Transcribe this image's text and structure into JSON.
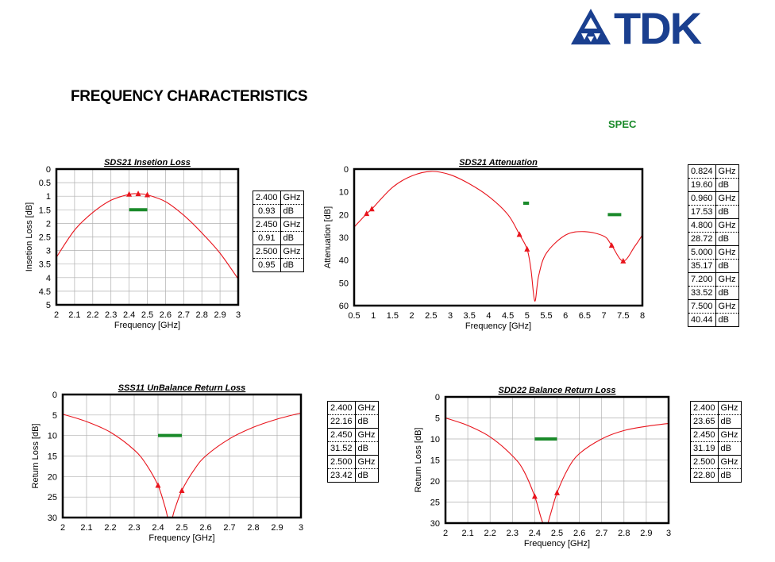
{
  "page_title": "FREQUENCY CHARACTERISTICS",
  "spec_label": "SPEC",
  "logo": {
    "text": "TDK",
    "icon": "tdk-triangle-logo-icon",
    "color": "#1a3f8f"
  },
  "colors": {
    "curve": "#e8141c",
    "spec": "#1a8a2a",
    "grid": "#b0b0b0"
  },
  "chart_data": [
    {
      "id": "sds21-insertion-loss",
      "type": "line",
      "title": "SDS21 Insetion Loss",
      "xlabel": "Frequency [GHz]",
      "ylabel": "Insetion Loss [dB]",
      "xlim": [
        2,
        3
      ],
      "ylim": [
        0,
        5
      ],
      "y_inverted": true,
      "xticks": [
        "2",
        "2.1",
        "2.2",
        "2.3",
        "2.4",
        "2.5",
        "2.6",
        "2.7",
        "2.8",
        "2.9",
        "3"
      ],
      "yticks": [
        "0",
        "0.5",
        "1",
        "1.5",
        "2",
        "2.5",
        "3",
        "3.5",
        "4",
        "4.5",
        "5"
      ],
      "grid": true,
      "series": [
        {
          "x": [
            2.0,
            2.1,
            2.2,
            2.3,
            2.4,
            2.45,
            2.5,
            2.6,
            2.7,
            2.8,
            2.9,
            3.0
          ],
          "values": [
            3.25,
            2.25,
            1.6,
            1.15,
            0.93,
            0.91,
            0.95,
            1.2,
            1.7,
            2.35,
            3.1,
            4.05
          ]
        }
      ],
      "markers": [
        {
          "x": 2.4,
          "y": 0.93
        },
        {
          "x": 2.45,
          "y": 0.91
        },
        {
          "x": 2.5,
          "y": 0.95
        }
      ],
      "spec_lines": [
        {
          "x1": 2.4,
          "x2": 2.5,
          "y": 1.5
        }
      ],
      "table": [
        {
          "freq": "2.400",
          "fu": "GHz",
          "val": "0.93",
          "vu": "dB"
        },
        {
          "freq": "2.450",
          "fu": "GHz",
          "val": "0.91",
          "vu": "dB"
        },
        {
          "freq": "2.500",
          "fu": "GHz",
          "val": "0.95",
          "vu": "dB"
        }
      ]
    },
    {
      "id": "sds21-attenuation",
      "type": "line",
      "title": "SDS21 Attenuation",
      "xlabel": "Frequency [GHz]",
      "ylabel": "Attenuation [dB]",
      "xlim": [
        0.5,
        8
      ],
      "ylim": [
        0,
        60
      ],
      "y_inverted": true,
      "xticks": [
        "0.5",
        "1",
        "1.5",
        "2",
        "2.5",
        "3",
        "3.5",
        "4",
        "4.5",
        "5",
        "5.5",
        "6",
        "6.5",
        "7",
        "7.5",
        "8"
      ],
      "yticks": [
        "0",
        "10",
        "20",
        "30",
        "40",
        "50",
        "60"
      ],
      "grid": false,
      "series": [
        {
          "x": [
            0.5,
            0.824,
            0.96,
            1.5,
            2.0,
            2.5,
            3.0,
            3.5,
            4.0,
            4.5,
            4.8,
            5.0,
            5.1,
            5.2,
            5.3,
            5.5,
            6.0,
            6.5,
            7.0,
            7.2,
            7.5,
            7.8,
            8.0
          ],
          "values": [
            25.5,
            19.6,
            17.53,
            8,
            3,
            1,
            2.5,
            6.5,
            12,
            20,
            28.72,
            35.17,
            44,
            58,
            47,
            37,
            29,
            27.5,
            29.5,
            33.52,
            40.44,
            34,
            29
          ]
        }
      ],
      "markers": [
        {
          "x": 0.824,
          "y": 19.6
        },
        {
          "x": 0.96,
          "y": 17.53
        },
        {
          "x": 4.8,
          "y": 28.72
        },
        {
          "x": 5.0,
          "y": 35.17
        },
        {
          "x": 7.2,
          "y": 33.52
        },
        {
          "x": 7.5,
          "y": 40.44
        }
      ],
      "spec_lines": [
        {
          "x1": 4.9,
          "x2": 5.05,
          "y": 15
        },
        {
          "x1": 7.1,
          "x2": 7.45,
          "y": 20
        }
      ],
      "table": [
        {
          "freq": "0.824",
          "fu": "GHz",
          "val": "19.60",
          "vu": "dB"
        },
        {
          "freq": "0.960",
          "fu": "GHz",
          "val": "17.53",
          "vu": "dB"
        },
        {
          "freq": "4.800",
          "fu": "GHz",
          "val": "28.72",
          "vu": "dB"
        },
        {
          "freq": "5.000",
          "fu": "GHz",
          "val": "35.17",
          "vu": "dB"
        },
        {
          "freq": "7.200",
          "fu": "GHz",
          "val": "33.52",
          "vu": "dB"
        },
        {
          "freq": "7.500",
          "fu": "GHz",
          "val": "40.44",
          "vu": "dB"
        }
      ]
    },
    {
      "id": "sss11-return-loss",
      "type": "line",
      "title": "SSS11 UnBalance Return Loss",
      "xlabel": "Frequency [GHz]",
      "ylabel": "Return Loss [dB]",
      "xlim": [
        2,
        3
      ],
      "ylim": [
        0,
        30
      ],
      "y_inverted": true,
      "xticks": [
        "2",
        "2.1",
        "2.2",
        "2.3",
        "2.4",
        "2.5",
        "2.6",
        "2.7",
        "2.8",
        "2.9",
        "3"
      ],
      "yticks": [
        "0",
        "5",
        "10",
        "15",
        "20",
        "25",
        "30"
      ],
      "grid": true,
      "series": [
        {
          "x": [
            2.0,
            2.1,
            2.2,
            2.3,
            2.35,
            2.4,
            2.43,
            2.45,
            2.47,
            2.5,
            2.55,
            2.6,
            2.7,
            2.8,
            2.9,
            3.0
          ],
          "values": [
            4.8,
            6.6,
            9.2,
            13.5,
            17,
            22.16,
            27.5,
            31.52,
            28,
            23.42,
            18.5,
            15,
            10.8,
            8,
            6,
            4.5
          ]
        }
      ],
      "markers": [
        {
          "x": 2.4,
          "y": 22.16
        },
        {
          "x": 2.5,
          "y": 23.42
        }
      ],
      "spec_lines": [
        {
          "x1": 2.4,
          "x2": 2.5,
          "y": 10
        }
      ],
      "table": [
        {
          "freq": "2.400",
          "fu": "GHz",
          "val": "22.16",
          "vu": "dB"
        },
        {
          "freq": "2.450",
          "fu": "GHz",
          "val": "31.52",
          "vu": "dB"
        },
        {
          "freq": "2.500",
          "fu": "GHz",
          "val": "23.42",
          "vu": "dB"
        }
      ]
    },
    {
      "id": "sdd22-return-loss",
      "type": "line",
      "title": "SDD22 Balance Return Loss",
      "xlabel": "Frequency [GHz]",
      "ylabel": "Return Loss [dB]",
      "xlim": [
        2,
        3
      ],
      "ylim": [
        0,
        30
      ],
      "y_inverted": true,
      "xticks": [
        "2",
        "2.1",
        "2.2",
        "2.3",
        "2.4",
        "2.5",
        "2.6",
        "2.7",
        "2.8",
        "2.9",
        "3"
      ],
      "yticks": [
        "0",
        "5",
        "10",
        "15",
        "20",
        "25",
        "30"
      ],
      "grid": true,
      "series": [
        {
          "x": [
            2.0,
            2.1,
            2.2,
            2.3,
            2.35,
            2.4,
            2.43,
            2.45,
            2.47,
            2.5,
            2.55,
            2.6,
            2.7,
            2.8,
            2.9,
            3.0
          ],
          "values": [
            5,
            6.8,
            9.5,
            14,
            17.5,
            23.65,
            29,
            31.19,
            28,
            22.8,
            17,
            13.5,
            10,
            8,
            7,
            6.3
          ]
        }
      ],
      "markers": [
        {
          "x": 2.4,
          "y": 23.65
        },
        {
          "x": 2.5,
          "y": 22.8
        }
      ],
      "spec_lines": [
        {
          "x1": 2.4,
          "x2": 2.5,
          "y": 10
        }
      ],
      "table": [
        {
          "freq": "2.400",
          "fu": "GHz",
          "val": "23.65",
          "vu": "dB"
        },
        {
          "freq": "2.450",
          "fu": "GHz",
          "val": "31.19",
          "vu": "dB"
        },
        {
          "freq": "2.500",
          "fu": "GHz",
          "val": "22.80",
          "vu": "dB"
        }
      ]
    }
  ]
}
